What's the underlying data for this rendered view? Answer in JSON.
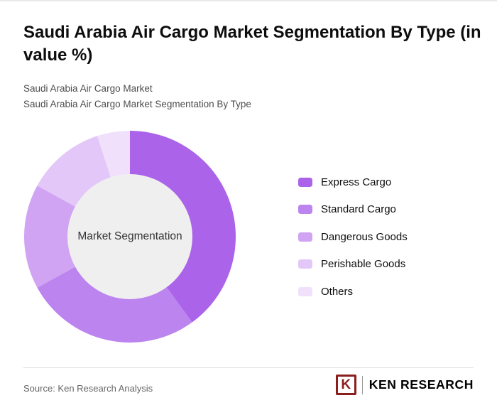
{
  "page": {
    "title": "Saudi Arabia Air Cargo Market Segmentation By Type (in value %)",
    "subtitle_1": "Saudi Arabia Air Cargo Market",
    "subtitle_2": "Saudi Arabia Air Cargo Market Segmentation By Type",
    "source": "Source: Ken Research Analysis",
    "brand": {
      "logo_letter": "K",
      "name": "KEN RESEARCH",
      "color": "#8b1d1d"
    }
  },
  "chart_data": {
    "type": "pie",
    "donut": true,
    "title": "Saudi Arabia Air Cargo Market Segmentation By Type (in value %)",
    "center_label": "Market Segmentation",
    "categories": [
      "Express Cargo",
      "Standard Cargo",
      "Dangerous Goods",
      "Perishable Goods",
      "Others"
    ],
    "values": [
      40,
      27,
      16,
      12,
      5
    ],
    "colors": [
      "#aa63e9",
      "#bc84ee",
      "#d0a3f3",
      "#e3c7f8",
      "#f0e0fc"
    ],
    "center_fill": "#f0eff0",
    "start_angle_deg": -90,
    "direction": "clockwise",
    "legend_position": "right",
    "data_labels": false
  }
}
